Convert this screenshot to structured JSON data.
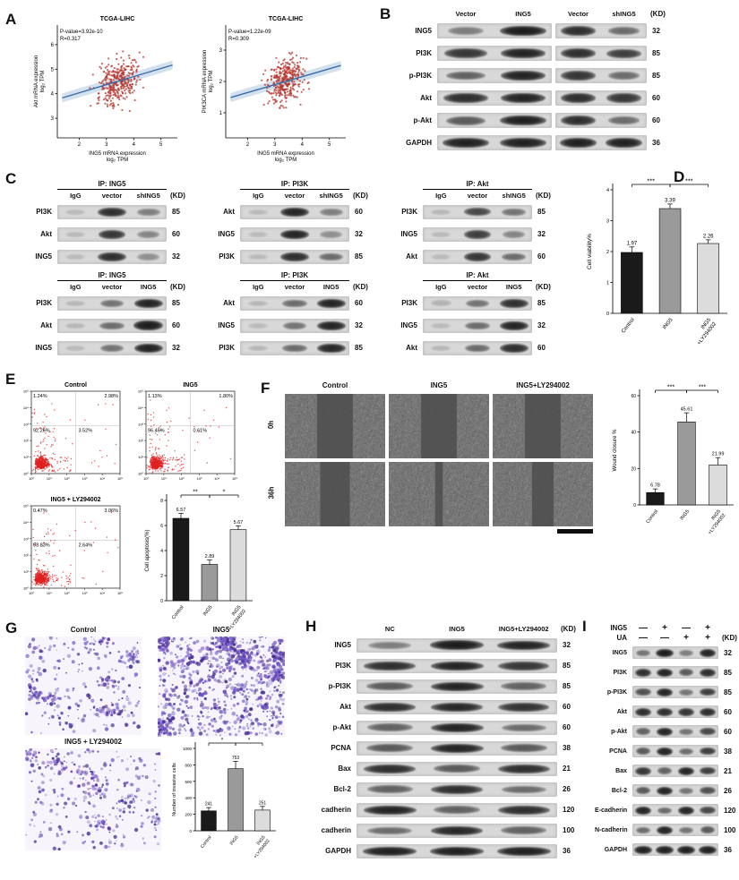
{
  "panelA": {
    "label": "A",
    "plots": [
      {
        "title": "TCGA-LIHC",
        "stats_line1": "P-value=3.92e-10",
        "stats_line2": "R=0.317",
        "ylabel_line1": "Akt mRNA expression",
        "ylabel_line2": "log₂ TPM",
        "xlabel_line1": "ING5 mRNA expression",
        "xlabel_line2": "log₂ TPM",
        "xticks": [
          "2",
          "3",
          "4",
          "5"
        ],
        "yticks": [
          "3",
          "4",
          "5",
          "6"
        ],
        "xrange": [
          1.2,
          5.6
        ],
        "yrange": [
          2.2,
          6.8
        ],
        "r": 0.317,
        "n_points": 340,
        "seed": 42,
        "dot_color": "#b5342c",
        "line_color": "#3a6ea8"
      },
      {
        "title": "TCGA-LIHC",
        "stats_line1": "P-value=1.22e-09",
        "stats_line2": "R=0.309",
        "ylabel_line1": "PIK3CA mRNA expression",
        "ylabel_line2": "log₂ TPM",
        "xlabel_line1": "ING5 mRNA expression",
        "xlabel_line2": "log₂ TPM",
        "xticks": [
          "2",
          "3",
          "4",
          "5"
        ],
        "yticks": [
          "1",
          "2",
          "3"
        ],
        "xrange": [
          1.2,
          5.6
        ],
        "yrange": [
          0.2,
          3.8
        ],
        "r": 0.309,
        "n_points": 340,
        "seed": 77,
        "dot_color": "#b5342c",
        "line_color": "#3a6ea8"
      }
    ]
  },
  "panelB": {
    "label": "B",
    "kd": "(KD)",
    "col_groups": [
      [
        "Vector",
        "ING5"
      ],
      [
        "Vector",
        "shING5"
      ]
    ],
    "rows": [
      {
        "label": "ING5",
        "size": "32",
        "groups": [
          [
            0.4,
            0.95
          ],
          [
            0.85,
            0.5
          ]
        ]
      },
      {
        "label": "PI3K",
        "size": "85",
        "groups": [
          [
            0.8,
            0.9
          ],
          [
            0.85,
            0.75
          ]
        ]
      },
      {
        "label": "p-PI3K",
        "size": "85",
        "groups": [
          [
            0.55,
            0.9
          ],
          [
            0.8,
            0.5
          ]
        ]
      },
      {
        "label": "Akt",
        "size": "60",
        "groups": [
          [
            0.85,
            0.9
          ],
          [
            0.85,
            0.8
          ]
        ]
      },
      {
        "label": "p-Akt",
        "size": "60",
        "groups": [
          [
            0.6,
            0.92
          ],
          [
            0.85,
            0.5
          ]
        ]
      },
      {
        "label": "GAPDH",
        "size": "36",
        "groups": [
          [
            0.92,
            0.92
          ],
          [
            0.92,
            0.92
          ]
        ]
      }
    ]
  },
  "panelC": {
    "label": "C",
    "blocks": [
      {
        "title": "IP: ING5",
        "kd": "(KD)",
        "cols": [
          "IgG",
          "vector",
          "shING5"
        ],
        "rows": [
          {
            "label": "PI3K",
            "size": "85",
            "lanes": [
              0.06,
              0.85,
              0.4
            ]
          },
          {
            "label": "Akt",
            "size": "60",
            "lanes": [
              0.06,
              0.8,
              0.35
            ]
          },
          {
            "label": "ING5",
            "size": "32",
            "lanes": [
              0.06,
              0.85,
              0.3
            ]
          }
        ]
      },
      {
        "title": "IP: PI3K",
        "kd": "(KD)",
        "cols": [
          "IgG",
          "vector",
          "shING5"
        ],
        "rows": [
          {
            "label": "Akt",
            "size": "60",
            "lanes": [
              0.06,
              0.9,
              0.4
            ]
          },
          {
            "label": "ING5",
            "size": "32",
            "lanes": [
              0.06,
              0.9,
              0.3
            ]
          },
          {
            "label": "PI3K",
            "size": "85",
            "lanes": [
              0.06,
              0.85,
              0.5
            ]
          }
        ]
      },
      {
        "title": "IP: Akt",
        "kd": "(KD)",
        "cols": [
          "IgG",
          "vector",
          "shING5"
        ],
        "rows": [
          {
            "label": "PI3K",
            "size": "85",
            "lanes": [
              0.08,
              0.7,
              0.45
            ]
          },
          {
            "label": "ING5",
            "size": "32",
            "lanes": [
              0.06,
              0.75,
              0.35
            ]
          },
          {
            "label": "Akt",
            "size": "60",
            "lanes": [
              0.06,
              0.8,
              0.5
            ]
          }
        ]
      },
      {
        "title": "IP: ING5",
        "kd": "(KD)",
        "cols": [
          "IgG",
          "vector",
          "ING5"
        ],
        "rows": [
          {
            "label": "PI3K",
            "size": "85",
            "lanes": [
              0.08,
              0.45,
              0.9
            ]
          },
          {
            "label": "Akt",
            "size": "60",
            "lanes": [
              0.08,
              0.5,
              0.95
            ]
          },
          {
            "label": "ING5",
            "size": "32",
            "lanes": [
              0.06,
              0.45,
              0.9
            ]
          }
        ]
      },
      {
        "title": "IP: PI3K",
        "kd": "(KD)",
        "cols": [
          "IgG",
          "vector",
          "ING5"
        ],
        "rows": [
          {
            "label": "Akt",
            "size": "60",
            "lanes": [
              0.08,
              0.5,
              0.9
            ]
          },
          {
            "label": "ING5",
            "size": "32",
            "lanes": [
              0.06,
              0.45,
              0.9
            ]
          },
          {
            "label": "PI3K",
            "size": "85",
            "lanes": [
              0.08,
              0.5,
              0.88
            ]
          }
        ]
      },
      {
        "title": "IP: Akt",
        "kd": "(KD)",
        "cols": [
          "IgG",
          "vector",
          "ING5"
        ],
        "rows": [
          {
            "label": "PI3K",
            "size": "85",
            "lanes": [
              0.1,
              0.45,
              0.85
            ]
          },
          {
            "label": "ING5",
            "size": "32",
            "lanes": [
              0.06,
              0.5,
              0.9
            ]
          },
          {
            "label": "Akt",
            "size": "60",
            "lanes": [
              0.08,
              0.5,
              0.85
            ]
          }
        ]
      }
    ]
  },
  "panelD": {
    "label": "D",
    "chart": {
      "ylabel": "Cell viability%",
      "ymax": 4,
      "yticks": [
        0,
        1,
        2,
        3,
        4
      ],
      "bars": [
        {
          "label": "Control",
          "value": 1.97,
          "display": "1.97",
          "color": "#1a1a1a",
          "err": 0.18
        },
        {
          "label": "ING5",
          "value": 3.39,
          "display": "3.39",
          "color": "#9a9a9a",
          "err": 0.15
        },
        {
          "label": "ING5\n+LY294002",
          "value": 2.26,
          "display": "2.26",
          "color": "#dcdcdc",
          "err": 0.12
        }
      ],
      "sig": [
        {
          "a": 0,
          "b": 1,
          "text": "***"
        },
        {
          "a": 1,
          "b": 2,
          "text": "***"
        }
      ]
    }
  },
  "panelE": {
    "label": "E",
    "axis_ticks": [
      "10⁰",
      "10¹",
      "10²",
      "10³",
      "10⁴",
      "10⁵"
    ],
    "flows": [
      {
        "title": "Control",
        "ul": "1.24%",
        "ur": "2.98%",
        "ll": "92.26%",
        "lr": "3.52%",
        "seed": 11
      },
      {
        "title": "ING5",
        "ul": "1.13%",
        "ur": "1.80%",
        "ll": "96.46%",
        "lr": "0.61%",
        "seed": 22
      },
      {
        "title": "ING5 + LY294002",
        "ul": "0.47%",
        "ur": "3.06%",
        "ll": "93.83%",
        "lr": "2.64%",
        "seed": 33
      }
    ],
    "chart": {
      "ylabel": "Cell apoptosis(%)",
      "ymax": 8,
      "yticks": [
        0,
        2,
        4,
        6,
        8
      ],
      "bars": [
        {
          "label": "Control",
          "value": 6.57,
          "display": "6.57",
          "color": "#1a1a1a",
          "err": 0.4
        },
        {
          "label": "ING5",
          "value": 2.89,
          "display": "2.89",
          "color": "#9a9a9a",
          "err": 0.35
        },
        {
          "label": "ING5\n+LY294002",
          "value": 5.67,
          "display": "5.67",
          "color": "#dcdcdc",
          "err": 0.3
        }
      ],
      "sig": [
        {
          "a": 0,
          "b": 1,
          "text": "**"
        },
        {
          "a": 1,
          "b": 2,
          "text": "*"
        }
      ]
    }
  },
  "panelF": {
    "label": "F",
    "col_headers": [
      "Control",
      "ING5",
      "ING5+LY294002"
    ],
    "row_headers": [
      "0h",
      "36h"
    ],
    "gaps": [
      [
        0.36,
        0.36,
        0.36
      ],
      [
        0.3,
        0.08,
        0.22
      ]
    ],
    "chart": {
      "ylabel": "Wound closure %",
      "ymax": 60,
      "yticks": [
        0,
        20,
        40,
        60
      ],
      "bars": [
        {
          "label": "Control",
          "value": 6.78,
          "display": "6.78",
          "color": "#1a1a1a",
          "err": 2
        },
        {
          "label": "ING5",
          "value": 45.61,
          "display": "45.61",
          "color": "#9a9a9a",
          "err": 5
        },
        {
          "label": "ING5\n+LY294002",
          "value": 21.99,
          "display": "21.99",
          "color": "#dcdcdc",
          "err": 4
        }
      ],
      "sig": [
        {
          "a": 0,
          "b": 1,
          "text": "***"
        },
        {
          "a": 1,
          "b": 2,
          "text": "***"
        }
      ]
    }
  },
  "panelG": {
    "label": "G",
    "images": [
      {
        "title": "Control",
        "density": 240,
        "seed": 5
      },
      {
        "title": "ING5",
        "density": 760,
        "seed": 6
      },
      {
        "title": "ING5 + LY294002",
        "density": 255,
        "seed": 7
      }
    ],
    "chart": {
      "ylabel": "Number of invasive cells",
      "ymax": 1000,
      "yticks": [
        0,
        200,
        400,
        600,
        800,
        1000
      ],
      "bars": [
        {
          "label": "Control",
          "value": 241,
          "display": "241",
          "color": "#1a1a1a",
          "err": 40
        },
        {
          "label": "ING5",
          "value": 753,
          "display": "753",
          "color": "#9a9a9a",
          "err": 90
        },
        {
          "label": "ING5\n+LY294002",
          "value": 251,
          "display": "251",
          "color": "#dcdcdc",
          "err": 45
        }
      ],
      "sig": [
        {
          "a": 0,
          "b": 1,
          "text": "*"
        },
        {
          "a": 1,
          "b": 2,
          "text": "*"
        }
      ]
    }
  },
  "panelH": {
    "label": "H",
    "kd": "(KD)",
    "cols": [
      "NC",
      "ING5",
      "ING5+LY294002"
    ],
    "rows": [
      {
        "label": "ING5",
        "size": "32",
        "lanes": [
          0.4,
          0.95,
          0.9
        ]
      },
      {
        "label": "PI3K",
        "size": "85",
        "lanes": [
          0.85,
          0.9,
          0.8
        ]
      },
      {
        "label": "p-PI3K",
        "size": "85",
        "lanes": [
          0.6,
          0.9,
          0.55
        ]
      },
      {
        "label": "Akt",
        "size": "60",
        "lanes": [
          0.85,
          0.88,
          0.82
        ]
      },
      {
        "label": "p-Akt",
        "size": "60",
        "lanes": [
          0.55,
          0.9,
          0.5
        ]
      },
      {
        "label": "PCNA",
        "size": "38",
        "lanes": [
          0.6,
          0.9,
          0.6
        ]
      },
      {
        "label": "Bax",
        "size": "21",
        "lanes": [
          0.85,
          0.6,
          0.85
        ]
      },
      {
        "label": "Bcl-2",
        "size": "26",
        "lanes": [
          0.55,
          0.85,
          0.5
        ]
      },
      {
        "label": "cadherin",
        "size": "120",
        "lanes": [
          0.9,
          0.55,
          0.85
        ]
      },
      {
        "label": "cadherin",
        "size": "100",
        "lanes": [
          0.5,
          0.88,
          0.55
        ]
      },
      {
        "label": "GAPDH",
        "size": "36",
        "lanes": [
          0.92,
          0.92,
          0.92
        ]
      }
    ]
  },
  "panelI": {
    "label": "I",
    "kd": "(KD)",
    "treat_rows": [
      {
        "name": "ING5",
        "signs": [
          "—",
          "+",
          "—",
          "+"
        ]
      },
      {
        "name": "UA",
        "signs": [
          "—",
          "—",
          "+",
          "+"
        ]
      }
    ],
    "rows": [
      {
        "label": "ING5",
        "size": "32",
        "lanes": [
          0.45,
          0.95,
          0.4,
          0.9
        ]
      },
      {
        "label": "PI3K",
        "size": "85",
        "lanes": [
          0.85,
          0.9,
          0.6,
          0.85
        ]
      },
      {
        "label": "p-PI3K",
        "size": "85",
        "lanes": [
          0.65,
          0.9,
          0.45,
          0.75
        ]
      },
      {
        "label": "Akt",
        "size": "60",
        "lanes": [
          0.85,
          0.85,
          0.8,
          0.85
        ]
      },
      {
        "label": "p-Akt",
        "size": "60",
        "lanes": [
          0.55,
          0.9,
          0.45,
          0.7
        ]
      },
      {
        "label": "PCNA",
        "size": "38",
        "lanes": [
          0.6,
          0.9,
          0.5,
          0.75
        ]
      },
      {
        "label": "Bax",
        "size": "21",
        "lanes": [
          0.8,
          0.55,
          0.9,
          0.75
        ]
      },
      {
        "label": "Bcl-2",
        "size": "26",
        "lanes": [
          0.6,
          0.9,
          0.45,
          0.65
        ]
      },
      {
        "label": "E-cadherin",
        "size": "120",
        "lanes": [
          0.9,
          0.5,
          0.9,
          0.7
        ]
      },
      {
        "label": "N-cadherin",
        "size": "100",
        "lanes": [
          0.5,
          0.9,
          0.45,
          0.6
        ]
      },
      {
        "label": "GAPDH",
        "size": "36",
        "lanes": [
          0.92,
          0.92,
          0.92,
          0.92
        ]
      }
    ]
  },
  "chart_data": [
    {
      "type": "scatter",
      "title": "TCGA-LIHC",
      "xlabel": "ING5 mRNA expression log₂ TPM",
      "ylabel": "Akt mRNA expression log₂ TPM",
      "annotation": "P-value=3.92e-10, R=0.317",
      "xlim": [
        1.2,
        5.6
      ],
      "ylim": [
        2.2,
        6.8
      ]
    },
    {
      "type": "scatter",
      "title": "TCGA-LIHC",
      "xlabel": "ING5 mRNA expression log₂ TPM",
      "ylabel": "PIK3CA mRNA expression log₂ TPM",
      "annotation": "P-value=1.22e-09, R=0.309",
      "xlim": [
        1.2,
        5.6
      ],
      "ylim": [
        0.2,
        3.8
      ]
    },
    {
      "type": "bar",
      "title": "Cell viability",
      "categories": [
        "Control",
        "ING5",
        "ING5+LY294002"
      ],
      "values": [
        1.97,
        3.39,
        2.26
      ],
      "ylabel": "Cell viability%",
      "ylim": [
        0,
        4
      ]
    },
    {
      "type": "bar",
      "title": "Cell apoptosis",
      "categories": [
        "Control",
        "ING5",
        "ING5+LY294002"
      ],
      "values": [
        6.57,
        2.89,
        5.67
      ],
      "ylabel": "Cell apoptosis(%)",
      "ylim": [
        0,
        8
      ]
    },
    {
      "type": "bar",
      "title": "Wound closure",
      "categories": [
        "Control",
        "ING5",
        "ING5+LY294002"
      ],
      "values": [
        6.78,
        45.61,
        21.99
      ],
      "ylabel": "Wound closure %",
      "ylim": [
        0,
        60
      ]
    },
    {
      "type": "bar",
      "title": "Invasive cells",
      "categories": [
        "Control",
        "ING5",
        "ING5+LY294002"
      ],
      "values": [
        241,
        753,
        251
      ],
      "ylabel": "Number of invasive cells",
      "ylim": [
        0,
        1000
      ]
    }
  ]
}
